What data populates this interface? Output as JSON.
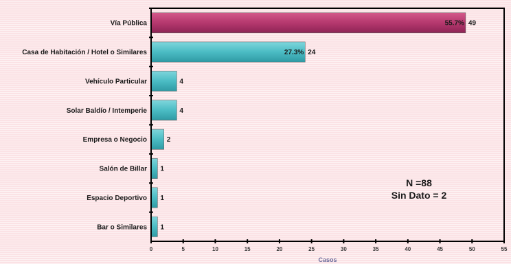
{
  "chart_data": {
    "type": "bar",
    "orientation": "horizontal",
    "categories": [
      "Vía Pública",
      "Casa de Habitación / Hotel o Similares",
      "Vehículo Particular",
      "Solar Baldío / Intemperie",
      "Empresa o Negocio",
      "Salón de Billar",
      "Espacio Deportivo",
      "Bar o Similares"
    ],
    "values": [
      49,
      24,
      4,
      4,
      2,
      1,
      1,
      1
    ],
    "percent_labels": [
      "55.7%",
      "27.3%",
      "",
      "",
      "",
      "",
      "",
      ""
    ],
    "xlabel": "Casos",
    "xlim": [
      0,
      55
    ],
    "xticks": [
      0,
      5,
      10,
      15,
      20,
      25,
      30,
      35,
      40,
      45,
      50,
      55
    ],
    "grid": false,
    "colors": {
      "highlight": "#b5386e",
      "default": "#4bbcc4",
      "axis": "#000000"
    },
    "annotations": [
      "N =88",
      "Sin Dato = 2"
    ]
  }
}
